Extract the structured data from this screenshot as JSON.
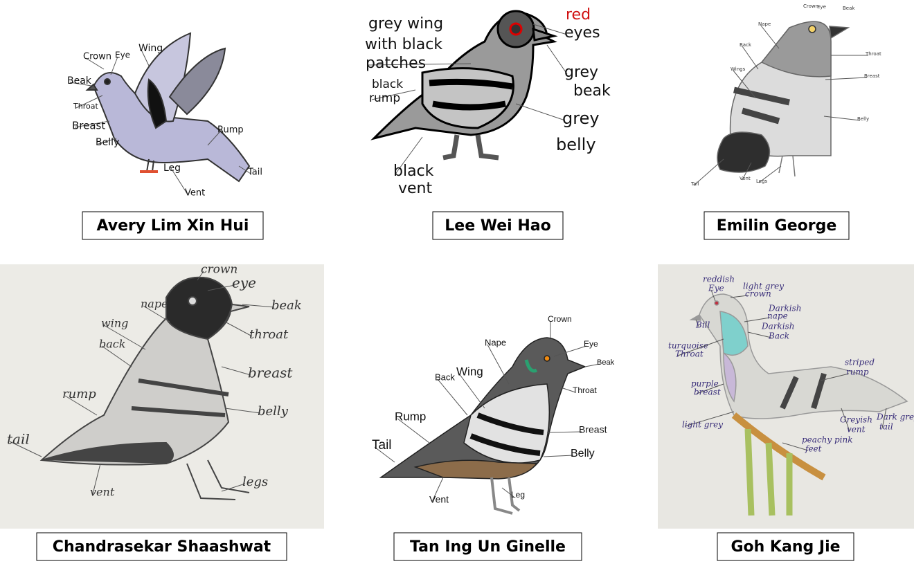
{
  "panels": [
    {
      "name": "Avery Lim Xin Hui",
      "labels": [
        "Crown",
        "Eye",
        "Wing",
        "Beak",
        "Throat",
        "Breast",
        "Belly",
        "Rump",
        "Leg",
        "Tail",
        "Vent"
      ]
    },
    {
      "name": "Lee Wei Hao",
      "labels": [
        "grey wing",
        "with black",
        "patches",
        "red",
        "eyes",
        "grey",
        "beak",
        "black",
        "rump",
        "grey",
        "belly",
        "black",
        "vent"
      ]
    },
    {
      "name": "Emilin George",
      "labels": [
        "Crown",
        "Eye",
        "Beak",
        "Nape",
        "Back",
        "Wings",
        "Throat",
        "Breast",
        "Belly",
        "Tail",
        "Vent",
        "Legs"
      ]
    },
    {
      "name": "Chandrasekar Shaashwat",
      "labels": [
        "crown",
        "eye",
        "beak",
        "nape",
        "wing",
        "back",
        "throat",
        "breast",
        "rump",
        "belly",
        "tail",
        "vent",
        "legs"
      ]
    },
    {
      "name": "Tan Ing Un Ginelle",
      "labels": [
        "Crown",
        "Eye",
        "Nape",
        "Beak",
        "Back",
        "Wing",
        "Throat",
        "Rump",
        "Breast",
        "Tail",
        "Belly",
        "Vent",
        "Leg"
      ]
    },
    {
      "name": "Goh Kang Jie",
      "labels": [
        "reddish",
        "Eye",
        "light grey",
        "crown",
        "Bill",
        "Darkish",
        "nape",
        "Darkish",
        "Back",
        "turquoise",
        "Throat",
        "striped",
        "rump",
        "purple",
        "breast",
        "light grey",
        "Greyish",
        "vent",
        "Dark grey",
        "tail",
        "peachy pink",
        "feet"
      ]
    }
  ]
}
